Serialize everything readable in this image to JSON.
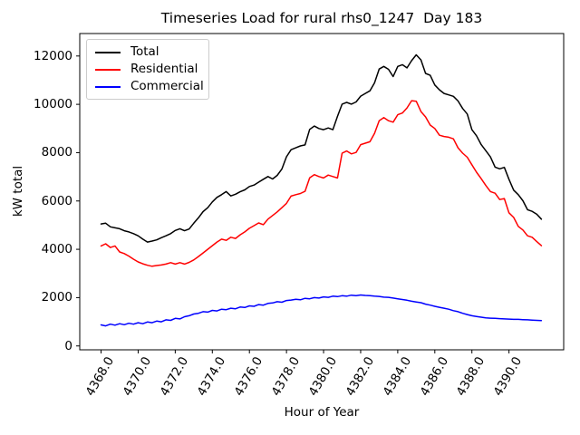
{
  "figure": {
    "background": "#ffffff",
    "axes_frame_color": "#000000"
  },
  "chart_data": {
    "type": "line",
    "title": "Timeseries Load for rural rhs0_1247  Day 183",
    "xlabel": "Hour of Year",
    "ylabel": "kW total",
    "grid": false,
    "legend_position": "upper left",
    "xlim": [
      4366.85,
      4392.95
    ],
    "ylim": [
      -160,
      12930
    ],
    "x_ticks": {
      "values": [
        4368,
        4370,
        4372,
        4374,
        4376,
        4378,
        4380,
        4382,
        4384,
        4386,
        4388,
        4390
      ],
      "labels": [
        "4368.0",
        "4370.0",
        "4372.0",
        "4374.0",
        "4376.0",
        "4378.0",
        "4380.0",
        "4382.0",
        "4384.0",
        "4386.0",
        "4388.0",
        "4390.0"
      ],
      "rotation_deg": 60
    },
    "y_ticks": {
      "values": [
        0,
        2000,
        4000,
        6000,
        8000,
        10000,
        12000
      ],
      "labels": [
        "0",
        "2000",
        "4000",
        "6000",
        "8000",
        "10000",
        "12000"
      ]
    },
    "x": [
      4368.0,
      4368.25,
      4368.5,
      4368.75,
      4369.0,
      4369.25,
      4369.5,
      4369.75,
      4370.0,
      4370.25,
      4370.5,
      4370.75,
      4371.0,
      4371.25,
      4371.5,
      4371.75,
      4372.0,
      4372.25,
      4372.5,
      4372.75,
      4373.0,
      4373.25,
      4373.5,
      4373.75,
      4374.0,
      4374.25,
      4374.5,
      4374.75,
      4375.0,
      4375.25,
      4375.5,
      4375.75,
      4376.0,
      4376.25,
      4376.5,
      4376.75,
      4377.0,
      4377.25,
      4377.5,
      4377.75,
      4378.0,
      4378.25,
      4378.5,
      4378.75,
      4379.0,
      4379.25,
      4379.5,
      4379.75,
      4380.0,
      4380.25,
      4380.5,
      4380.75,
      4381.0,
      4381.25,
      4381.5,
      4381.75,
      4382.0,
      4382.25,
      4382.5,
      4382.75,
      4383.0,
      4383.25,
      4383.5,
      4383.75,
      4384.0,
      4384.25,
      4384.5,
      4384.75,
      4385.0,
      4385.25,
      4385.5,
      4385.75,
      4386.0,
      4386.25,
      4386.5,
      4386.75,
      4387.0,
      4387.25,
      4387.5,
      4387.75,
      4388.0,
      4388.25,
      4388.5,
      4388.75,
      4389.0,
      4389.25,
      4389.5,
      4389.75,
      4390.0,
      4390.25,
      4390.5,
      4390.75,
      4391.0,
      4391.25,
      4391.5,
      4391.75
    ],
    "series": [
      {
        "name": "Total",
        "color": "#000000",
        "values": [
          5050,
          5080,
          4930,
          4890,
          4850,
          4770,
          4720,
          4650,
          4560,
          4420,
          4300,
          4340,
          4390,
          4480,
          4560,
          4650,
          4780,
          4850,
          4770,
          4840,
          5080,
          5300,
          5560,
          5720,
          5960,
          6150,
          6260,
          6390,
          6210,
          6280,
          6380,
          6460,
          6600,
          6660,
          6780,
          6900,
          7010,
          6910,
          7060,
          7320,
          7830,
          8120,
          8200,
          8280,
          8320,
          8960,
          9100,
          9000,
          8950,
          9020,
          8950,
          9500,
          10010,
          10080,
          10010,
          10100,
          10340,
          10450,
          10560,
          10890,
          11460,
          11570,
          11450,
          11150,
          11570,
          11640,
          11510,
          11810,
          12050,
          11840,
          11280,
          11200,
          10800,
          10600,
          10450,
          10390,
          10330,
          10140,
          9830,
          9600,
          8950,
          8700,
          8330,
          8080,
          7820,
          7400,
          7330,
          7390,
          6900,
          6450,
          6260,
          6010,
          5640,
          5570,
          5450,
          5250
        ]
      },
      {
        "name": "Residential",
        "color": "#ff0000",
        "values": [
          4140,
          4230,
          4075,
          4140,
          3890,
          3825,
          3720,
          3590,
          3480,
          3400,
          3340,
          3300,
          3330,
          3350,
          3390,
          3450,
          3390,
          3450,
          3390,
          3460,
          3560,
          3700,
          3850,
          4000,
          4150,
          4300,
          4420,
          4370,
          4500,
          4450,
          4600,
          4720,
          4870,
          4980,
          5090,
          5020,
          5250,
          5400,
          5550,
          5720,
          5900,
          6200,
          6260,
          6310,
          6400,
          6960,
          7090,
          7010,
          6950,
          7070,
          7010,
          6950,
          7980,
          8070,
          7950,
          8010,
          8330,
          8390,
          8450,
          8800,
          9320,
          9450,
          9320,
          9260,
          9570,
          9640,
          9850,
          10150,
          10130,
          9700,
          9480,
          9140,
          9000,
          8720,
          8670,
          8640,
          8570,
          8200,
          7980,
          7810,
          7500,
          7190,
          6920,
          6640,
          6390,
          6320,
          6060,
          6100,
          5510,
          5320,
          4950,
          4800,
          4560,
          4500,
          4320,
          4150
        ]
      },
      {
        "name": "Commercial",
        "color": "#0000ff",
        "values": [
          870,
          830,
          900,
          860,
          920,
          880,
          940,
          900,
          960,
          920,
          990,
          960,
          1030,
          1000,
          1080,
          1060,
          1140,
          1120,
          1210,
          1250,
          1320,
          1350,
          1420,
          1400,
          1470,
          1450,
          1520,
          1500,
          1560,
          1540,
          1610,
          1590,
          1660,
          1640,
          1710,
          1690,
          1760,
          1780,
          1830,
          1810,
          1880,
          1900,
          1930,
          1910,
          1970,
          1950,
          2000,
          1980,
          2030,
          2010,
          2060,
          2040,
          2080,
          2060,
          2100,
          2080,
          2110,
          2090,
          2080,
          2060,
          2050,
          2020,
          2010,
          1980,
          1950,
          1920,
          1890,
          1850,
          1820,
          1790,
          1730,
          1690,
          1640,
          1600,
          1560,
          1520,
          1460,
          1420,
          1350,
          1300,
          1250,
          1220,
          1190,
          1160,
          1150,
          1140,
          1130,
          1120,
          1110,
          1100,
          1100,
          1090,
          1080,
          1070,
          1060,
          1050
        ]
      }
    ]
  }
}
